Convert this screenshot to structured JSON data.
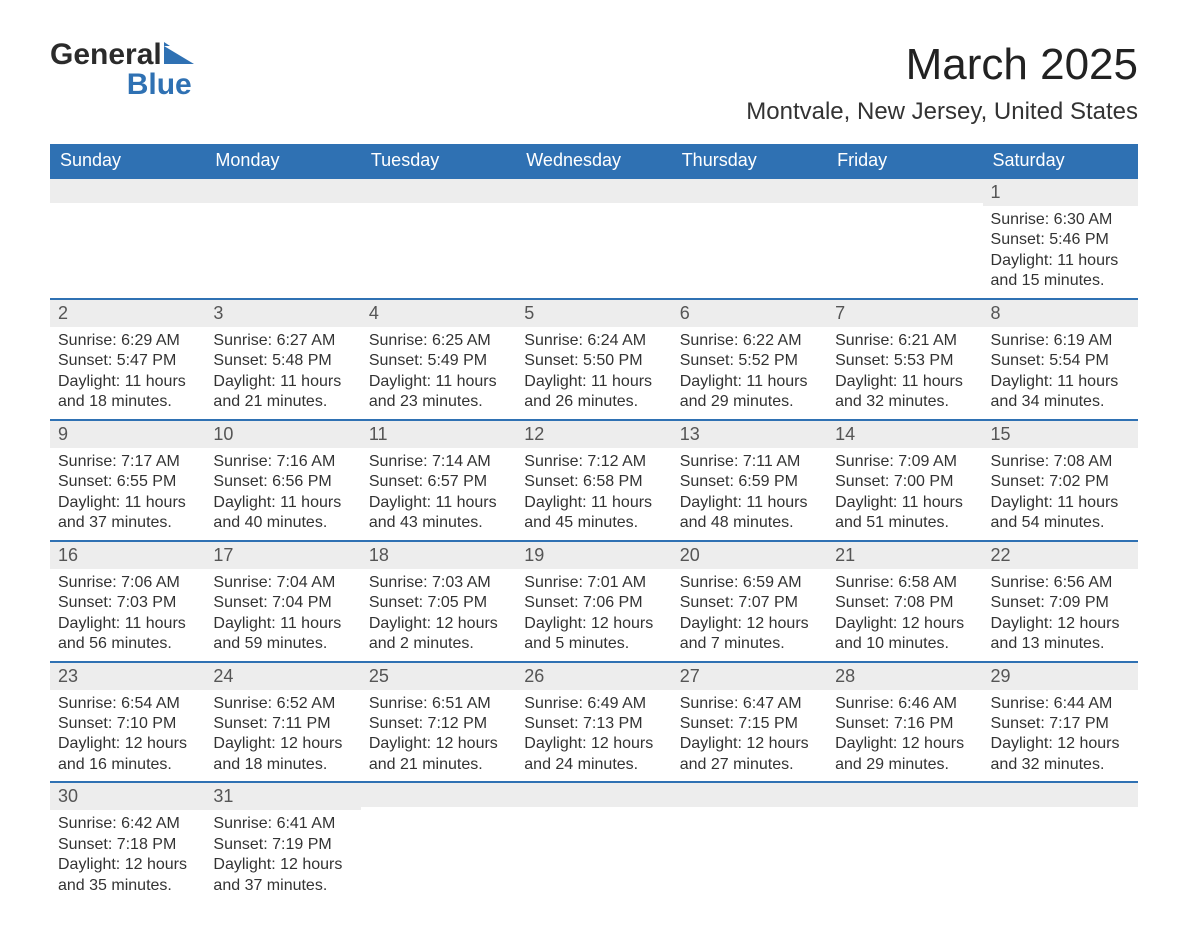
{
  "brand": {
    "word1": "General",
    "word2": "Blue",
    "word1_color": "#2b2b2b",
    "word2_color": "#2f71b3",
    "triangle_color": "#2f71b3"
  },
  "header": {
    "title": "March 2025",
    "location": "Montvale, New Jersey, United States"
  },
  "colors": {
    "header_bg": "#2f71b3",
    "header_text": "#ffffff",
    "daynum_bg": "#ededed",
    "row_border": "#2f71b3",
    "body_text": "#333333"
  },
  "daysOfWeek": [
    "Sunday",
    "Monday",
    "Tuesday",
    "Wednesday",
    "Thursday",
    "Friday",
    "Saturday"
  ],
  "weeks": [
    [
      {
        "n": ""
      },
      {
        "n": ""
      },
      {
        "n": ""
      },
      {
        "n": ""
      },
      {
        "n": ""
      },
      {
        "n": ""
      },
      {
        "n": "1",
        "sr": "Sunrise: 6:30 AM",
        "ss": "Sunset: 5:46 PM",
        "dl": "Daylight: 11 hours and 15 minutes."
      }
    ],
    [
      {
        "n": "2",
        "sr": "Sunrise: 6:29 AM",
        "ss": "Sunset: 5:47 PM",
        "dl": "Daylight: 11 hours and 18 minutes."
      },
      {
        "n": "3",
        "sr": "Sunrise: 6:27 AM",
        "ss": "Sunset: 5:48 PM",
        "dl": "Daylight: 11 hours and 21 minutes."
      },
      {
        "n": "4",
        "sr": "Sunrise: 6:25 AM",
        "ss": "Sunset: 5:49 PM",
        "dl": "Daylight: 11 hours and 23 minutes."
      },
      {
        "n": "5",
        "sr": "Sunrise: 6:24 AM",
        "ss": "Sunset: 5:50 PM",
        "dl": "Daylight: 11 hours and 26 minutes."
      },
      {
        "n": "6",
        "sr": "Sunrise: 6:22 AM",
        "ss": "Sunset: 5:52 PM",
        "dl": "Daylight: 11 hours and 29 minutes."
      },
      {
        "n": "7",
        "sr": "Sunrise: 6:21 AM",
        "ss": "Sunset: 5:53 PM",
        "dl": "Daylight: 11 hours and 32 minutes."
      },
      {
        "n": "8",
        "sr": "Sunrise: 6:19 AM",
        "ss": "Sunset: 5:54 PM",
        "dl": "Daylight: 11 hours and 34 minutes."
      }
    ],
    [
      {
        "n": "9",
        "sr": "Sunrise: 7:17 AM",
        "ss": "Sunset: 6:55 PM",
        "dl": "Daylight: 11 hours and 37 minutes."
      },
      {
        "n": "10",
        "sr": "Sunrise: 7:16 AM",
        "ss": "Sunset: 6:56 PM",
        "dl": "Daylight: 11 hours and 40 minutes."
      },
      {
        "n": "11",
        "sr": "Sunrise: 7:14 AM",
        "ss": "Sunset: 6:57 PM",
        "dl": "Daylight: 11 hours and 43 minutes."
      },
      {
        "n": "12",
        "sr": "Sunrise: 7:12 AM",
        "ss": "Sunset: 6:58 PM",
        "dl": "Daylight: 11 hours and 45 minutes."
      },
      {
        "n": "13",
        "sr": "Sunrise: 7:11 AM",
        "ss": "Sunset: 6:59 PM",
        "dl": "Daylight: 11 hours and 48 minutes."
      },
      {
        "n": "14",
        "sr": "Sunrise: 7:09 AM",
        "ss": "Sunset: 7:00 PM",
        "dl": "Daylight: 11 hours and 51 minutes."
      },
      {
        "n": "15",
        "sr": "Sunrise: 7:08 AM",
        "ss": "Sunset: 7:02 PM",
        "dl": "Daylight: 11 hours and 54 minutes."
      }
    ],
    [
      {
        "n": "16",
        "sr": "Sunrise: 7:06 AM",
        "ss": "Sunset: 7:03 PM",
        "dl": "Daylight: 11 hours and 56 minutes."
      },
      {
        "n": "17",
        "sr": "Sunrise: 7:04 AM",
        "ss": "Sunset: 7:04 PM",
        "dl": "Daylight: 11 hours and 59 minutes."
      },
      {
        "n": "18",
        "sr": "Sunrise: 7:03 AM",
        "ss": "Sunset: 7:05 PM",
        "dl": "Daylight: 12 hours and 2 minutes."
      },
      {
        "n": "19",
        "sr": "Sunrise: 7:01 AM",
        "ss": "Sunset: 7:06 PM",
        "dl": "Daylight: 12 hours and 5 minutes."
      },
      {
        "n": "20",
        "sr": "Sunrise: 6:59 AM",
        "ss": "Sunset: 7:07 PM",
        "dl": "Daylight: 12 hours and 7 minutes."
      },
      {
        "n": "21",
        "sr": "Sunrise: 6:58 AM",
        "ss": "Sunset: 7:08 PM",
        "dl": "Daylight: 12 hours and 10 minutes."
      },
      {
        "n": "22",
        "sr": "Sunrise: 6:56 AM",
        "ss": "Sunset: 7:09 PM",
        "dl": "Daylight: 12 hours and 13 minutes."
      }
    ],
    [
      {
        "n": "23",
        "sr": "Sunrise: 6:54 AM",
        "ss": "Sunset: 7:10 PM",
        "dl": "Daylight: 12 hours and 16 minutes."
      },
      {
        "n": "24",
        "sr": "Sunrise: 6:52 AM",
        "ss": "Sunset: 7:11 PM",
        "dl": "Daylight: 12 hours and 18 minutes."
      },
      {
        "n": "25",
        "sr": "Sunrise: 6:51 AM",
        "ss": "Sunset: 7:12 PM",
        "dl": "Daylight: 12 hours and 21 minutes."
      },
      {
        "n": "26",
        "sr": "Sunrise: 6:49 AM",
        "ss": "Sunset: 7:13 PM",
        "dl": "Daylight: 12 hours and 24 minutes."
      },
      {
        "n": "27",
        "sr": "Sunrise: 6:47 AM",
        "ss": "Sunset: 7:15 PM",
        "dl": "Daylight: 12 hours and 27 minutes."
      },
      {
        "n": "28",
        "sr": "Sunrise: 6:46 AM",
        "ss": "Sunset: 7:16 PM",
        "dl": "Daylight: 12 hours and 29 minutes."
      },
      {
        "n": "29",
        "sr": "Sunrise: 6:44 AM",
        "ss": "Sunset: 7:17 PM",
        "dl": "Daylight: 12 hours and 32 minutes."
      }
    ],
    [
      {
        "n": "30",
        "sr": "Sunrise: 6:42 AM",
        "ss": "Sunset: 7:18 PM",
        "dl": "Daylight: 12 hours and 35 minutes."
      },
      {
        "n": "31",
        "sr": "Sunrise: 6:41 AM",
        "ss": "Sunset: 7:19 PM",
        "dl": "Daylight: 12 hours and 37 minutes."
      },
      {
        "n": ""
      },
      {
        "n": ""
      },
      {
        "n": ""
      },
      {
        "n": ""
      },
      {
        "n": ""
      }
    ]
  ]
}
